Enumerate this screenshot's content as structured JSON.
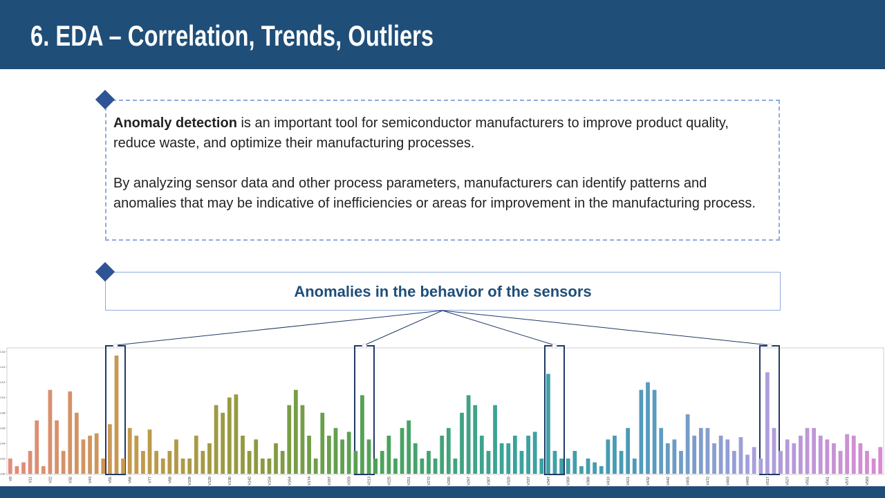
{
  "header": {
    "title": "6. EDA – Correlation, Trends, Outliers"
  },
  "intro": {
    "bold": "Anomaly detection",
    "text1": " is an important tool for semiconductor manufacturers to improve product quality, reduce waste, and optimize their manufacturing processes.",
    "text2": "By analyzing sensor data and other process parameters, manufacturers can identify patterns and anomalies that may be indicative of inefficiencies or areas for improvement in the manufacturing process."
  },
  "chart_data": {
    "type": "bar",
    "title": "Anomalies in the behavior of the sensors",
    "categories": [
      "V0",
      null,
      null,
      "V11",
      null,
      null,
      "V22",
      null,
      null,
      "V32",
      null,
      null,
      "V43",
      null,
      null,
      "V55",
      null,
      null,
      "V66",
      null,
      null,
      "V77",
      null,
      null,
      "V88",
      null,
      null,
      "V109",
      null,
      null,
      "V120",
      null,
      null,
      "V130",
      null,
      null,
      "V142",
      null,
      null,
      "V154",
      null,
      null,
      "V164",
      null,
      null,
      "V174",
      null,
      null,
      "V187",
      null,
      null,
      "V203",
      null,
      null,
      "V213",
      null,
      null,
      "V225",
      null,
      null,
      "V251",
      null,
      null,
      "V272",
      null,
      null,
      "V285",
      null,
      null,
      "V297",
      null,
      null,
      "V307",
      null,
      null,
      "V320",
      null,
      null,
      "V337",
      null,
      null,
      "V347",
      null,
      null,
      "V359",
      null,
      null,
      "V388",
      null,
      null,
      "V410",
      null,
      null,
      "V421",
      null,
      null,
      "V432",
      null,
      null,
      "V442",
      null,
      null,
      "V455",
      null,
      null,
      "V472",
      null,
      null,
      "V483",
      null,
      null,
      "V493",
      null,
      null,
      "V517",
      null,
      null,
      "V527",
      null,
      null,
      "V551",
      null,
      null,
      "V561",
      null,
      null,
      "V571",
      null,
      null,
      "V583",
      null,
      null
    ],
    "values": [
      0.02,
      0.01,
      0.015,
      0.03,
      0.07,
      0.01,
      0.11,
      0.07,
      0.03,
      0.108,
      0.08,
      0.045,
      0.05,
      0.053,
      0.02,
      0.065,
      0.155,
      0.02,
      0.06,
      0.05,
      0.03,
      0.058,
      0.03,
      0.02,
      0.03,
      0.045,
      0.02,
      0.02,
      0.05,
      0.03,
      0.04,
      0.09,
      0.08,
      0.1,
      0.104,
      0.05,
      0.03,
      0.045,
      0.02,
      0.02,
      0.04,
      0.03,
      0.09,
      0.11,
      0.09,
      0.05,
      0.02,
      0.08,
      0.05,
      0.06,
      0.045,
      0.055,
      0.03,
      0.103,
      0.045,
      0.02,
      0.03,
      0.05,
      0.02,
      0.06,
      0.07,
      0.04,
      0.02,
      0.03,
      0.02,
      0.05,
      0.06,
      0.02,
      0.08,
      0.103,
      0.09,
      0.05,
      0.03,
      0.09,
      0.04,
      0.04,
      0.05,
      0.03,
      0.05,
      0.055,
      0.02,
      0.131,
      0.03,
      0.02,
      0.02,
      0.03,
      0.01,
      0.02,
      0.015,
      0.01,
      0.045,
      0.05,
      0.03,
      0.06,
      0.02,
      0.11,
      0.12,
      0.11,
      0.06,
      0.04,
      0.045,
      0.03,
      0.078,
      0.05,
      0.06,
      0.06,
      0.04,
      0.05,
      0.045,
      0.03,
      0.048,
      0.025,
      0.035,
      0.02,
      0.133,
      0.06,
      0.03,
      0.045,
      0.04,
      0.05,
      0.06,
      0.06,
      0.05,
      0.045,
      0.04,
      0.03,
      0.052,
      0.05,
      0.04,
      0.03,
      0.02,
      0.035
    ],
    "palette": [
      "#e38b7e",
      "#c49a4c",
      "#8c9a3e",
      "#4aa35a",
      "#3aa39a",
      "#4a9ab8",
      "#a9a0dc",
      "#d98ad0"
    ],
    "ylim": [
      0,
      0.165
    ],
    "yticks": [
      {
        "value": 0,
        "label": "0.00"
      },
      {
        "value": 0.02,
        "label": "0.02"
      },
      {
        "value": 0.04,
        "label": "0.04"
      },
      {
        "value": 0.06,
        "label": "0.06"
      },
      {
        "value": 0.08,
        "label": "0.08"
      },
      {
        "value": 0.1,
        "label": "0.10"
      },
      {
        "value": 0.12,
        "label": "0.12"
      },
      {
        "value": 0.14,
        "label": "0.14"
      },
      {
        "value": 0.16,
        "label": "0.16"
      }
    ]
  }
}
